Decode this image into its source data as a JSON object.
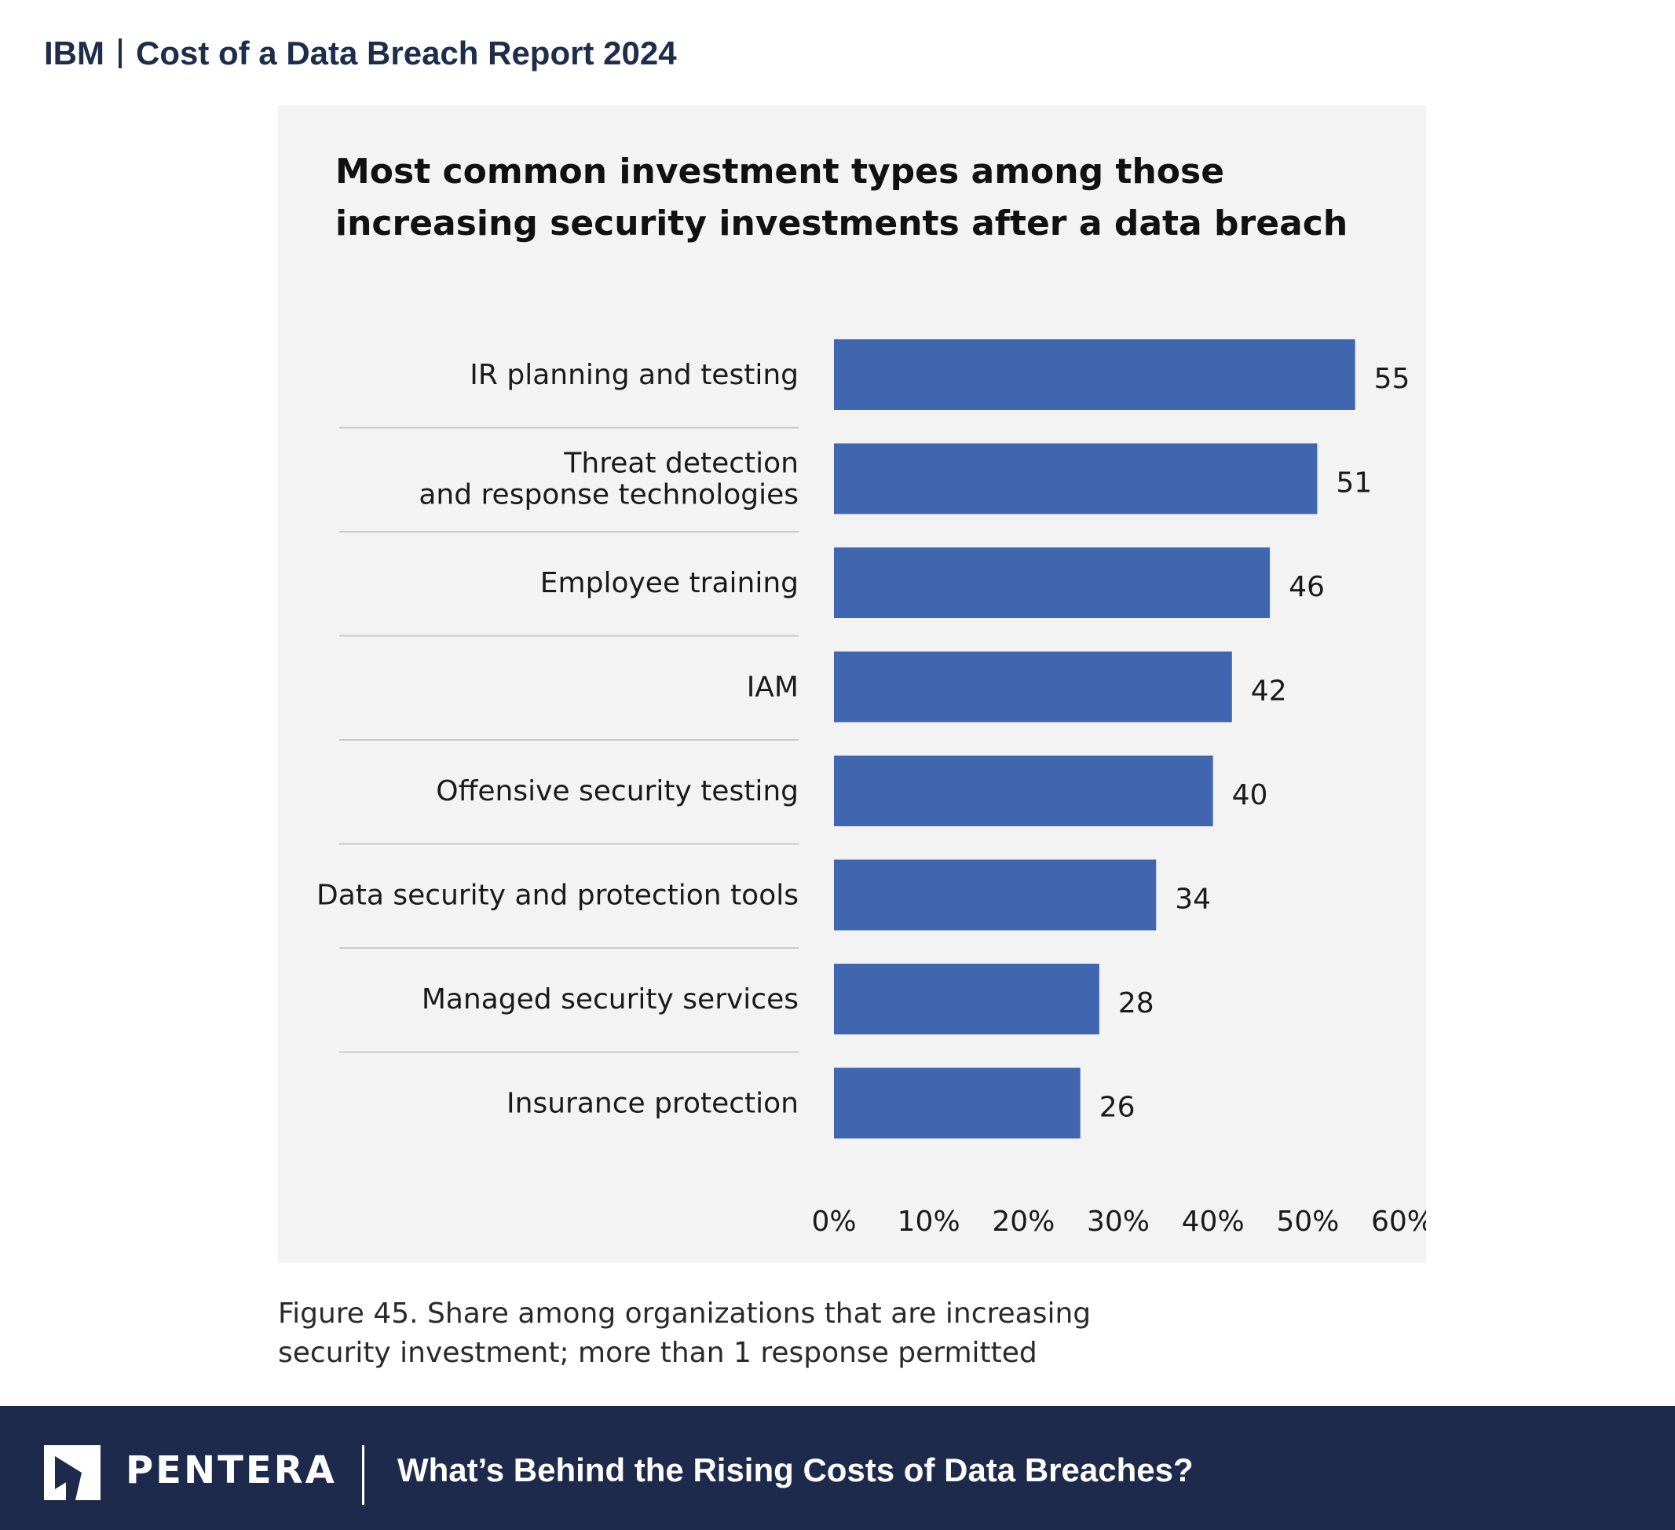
{
  "header": {
    "brand": "IBM",
    "report_title": "Cost of a Data Breach Report 2024"
  },
  "chart_data": {
    "type": "bar",
    "orientation": "horizontal",
    "title": "Most common investment types among those increasing security investments after a data breach",
    "categories": [
      "IR planning and testing",
      "Threat detection\nand response technologies",
      "Employee training",
      "IAM",
      "Offensive security testing",
      "Data security and protection tools",
      "Managed security services",
      "Insurance protection"
    ],
    "values": [
      55,
      51,
      46,
      42,
      40,
      34,
      28,
      26
    ],
    "xlim": [
      0,
      60
    ],
    "ticks": [
      "0%",
      "10%",
      "20%",
      "30%",
      "40%",
      "50%",
      "60%"
    ],
    "grid": false,
    "bar_color": "#4166b0"
  },
  "caption": "Figure 45. Share among organizations that are increasing security investment; more than 1 response permitted",
  "footer": {
    "brand": "PENTERA",
    "title": "What’s Behind the Rising Costs of Data Breaches?",
    "background_color": "#1e2a4b"
  }
}
